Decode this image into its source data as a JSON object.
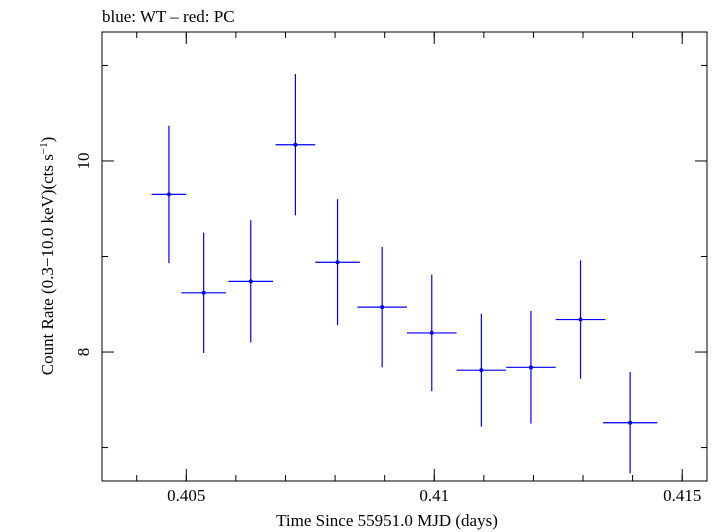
{
  "title": "blue: WT – red: PC",
  "colors": {
    "wt": "#0000ff",
    "axis": "#000000"
  },
  "chart_data": {
    "type": "scatter",
    "title": "blue: WT – red: PC",
    "xlabel": "Time Since 55951.0 MJD (days)",
    "ylabel_main": "Count Rate (0.3−10.0 keV)(cts s",
    "ylabel_sup": "−1",
    "ylabel_end": ")",
    "xlim": [
      0.4033,
      0.4155
    ],
    "ylim": [
      6.65,
      11.35
    ],
    "xticks": [
      {
        "value": 0.405,
        "label": "0.405"
      },
      {
        "value": 0.41,
        "label": "0.41"
      },
      {
        "value": 0.415,
        "label": "0.415"
      }
    ],
    "xminor_step": 0.001,
    "yticks": [
      {
        "value": 8,
        "label": "8"
      },
      {
        "value": 10,
        "label": "10"
      }
    ],
    "yminor": [
      7,
      9,
      11
    ],
    "grid": false,
    "series": [
      {
        "color": "#0000ff",
        "points": [
          {
            "x": 0.40465,
            "y": 9.65,
            "xerr": 0.00035,
            "yerr": 0.72
          },
          {
            "x": 0.40535,
            "y": 8.62,
            "xerr": 0.00045,
            "yerr": 0.63
          },
          {
            "x": 0.4063,
            "y": 8.74,
            "xerr": 0.00045,
            "yerr": 0.64
          },
          {
            "x": 0.4072,
            "y": 10.17,
            "xerr": 0.0004,
            "yerr": 0.74
          },
          {
            "x": 0.40805,
            "y": 8.94,
            "xerr": 0.00045,
            "yerr": 0.66
          },
          {
            "x": 0.40895,
            "y": 8.47,
            "xerr": 0.0005,
            "yerr": 0.63
          },
          {
            "x": 0.40995,
            "y": 8.2,
            "xerr": 0.0005,
            "yerr": 0.61
          },
          {
            "x": 0.41095,
            "y": 7.81,
            "xerr": 0.0005,
            "yerr": 0.59
          },
          {
            "x": 0.41195,
            "y": 7.84,
            "xerr": 0.0005,
            "yerr": 0.59
          },
          {
            "x": 0.41295,
            "y": 8.34,
            "xerr": 0.0005,
            "yerr": 0.62
          },
          {
            "x": 0.41395,
            "y": 7.26,
            "xerr": 0.00055,
            "yerr": 0.53
          }
        ]
      }
    ]
  }
}
